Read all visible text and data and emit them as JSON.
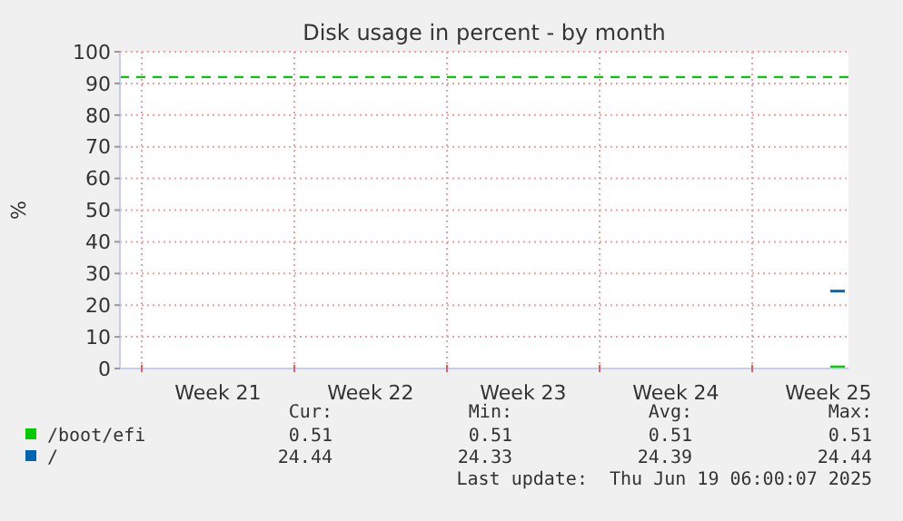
{
  "chart_data": {
    "type": "line",
    "title": "Disk usage in percent - by month",
    "ylabel": "%",
    "xlim": [
      "2025-05-17T00:00",
      "2025-06-19T10:00"
    ],
    "xticks": [
      {
        "value": "2025-05-18",
        "label": null
      },
      {
        "value": "2025-05-21T12:00",
        "label": "Week 21"
      },
      {
        "value": "2025-05-25",
        "label": null
      },
      {
        "value": "2025-05-28T12:00",
        "label": "Week 22"
      },
      {
        "value": "2025-06-01",
        "label": null
      },
      {
        "value": "2025-06-04T12:00",
        "label": "Week 23"
      },
      {
        "value": "2025-06-08",
        "label": null
      },
      {
        "value": "2025-06-11T12:00",
        "label": "Week 24"
      },
      {
        "value": "2025-06-15",
        "label": null
      },
      {
        "value": "2025-06-18T12:00",
        "label": "Week 25"
      }
    ],
    "ylim": [
      0,
      100
    ],
    "yticks": [
      0,
      10,
      20,
      30,
      40,
      50,
      60,
      70,
      80,
      90,
      100
    ],
    "grid": true,
    "legend": "bottom left",
    "line_style": "solid",
    "ref_lines": [
      {
        "axis": "y",
        "value": 92,
        "color": "#00cc00",
        "line_style": "dashed"
      }
    ],
    "series": [
      {
        "name": "/boot/efi",
        "color": "#00cc00",
        "x": [
          "2025-06-18T14:00",
          "2025-06-19T06:00"
        ],
        "values": [
          0.51,
          0.51
        ]
      },
      {
        "name": "/",
        "color": "#0066b3",
        "x": [
          "2025-06-18T14:00",
          "2025-06-19T06:00"
        ],
        "values": [
          24.44,
          24.44
        ]
      }
    ],
    "annotations": [
      "Cur:",
      "Min:",
      "Avg:",
      "Max:",
      "0.51",
      "0.51",
      "0.51",
      "0.51",
      "24.44",
      "24.33",
      "24.39",
      "24.44",
      "Last update:  Thu Jun 19 06:00:07 2025"
    ]
  }
}
